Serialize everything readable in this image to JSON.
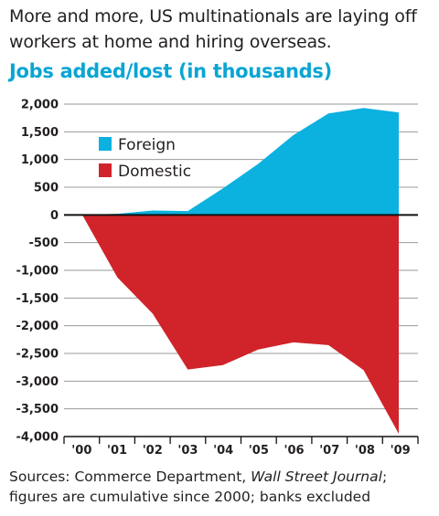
{
  "intro": "More and more, US multinationals are laying off workers at home and hiring overseas.",
  "source": {
    "prefix": "Sources: Commerce Department, ",
    "italic": "Wall Street Journal",
    "suffix": "; figures are cumulative since 2000; banks excluded"
  },
  "colors": {
    "foreign": "#0bb1df",
    "domestic": "#d1232a",
    "title": "#0aa5d3",
    "grid": "#9a9a9a",
    "axis": "#111111"
  },
  "chart_data": {
    "type": "area",
    "title": "Jobs added/lost (in thousands)",
    "x": [
      "'00",
      "'01",
      "'02",
      "'03",
      "'04",
      "'05",
      "'06",
      "'07",
      "'08",
      "'09"
    ],
    "ylim": [
      -4000,
      2000
    ],
    "yticks": [
      2000,
      1500,
      1000,
      500,
      0,
      -500,
      -1000,
      -1500,
      -2000,
      -2500,
      -3000,
      -3500,
      -4000
    ],
    "ytick_labels": [
      "2,000",
      "1,500",
      "1,000",
      "500",
      "0",
      "-500",
      "-1,000",
      "-1,500",
      "-2,000",
      "-2,500",
      "-3,000",
      "-3,500",
      "-4,000"
    ],
    "series": [
      {
        "name": "Foreign",
        "values": [
          0,
          20,
          80,
          70,
          480,
          920,
          1440,
          1830,
          1930,
          1850
        ]
      },
      {
        "name": "Domestic",
        "values": [
          0,
          -1130,
          -1780,
          -2790,
          -2710,
          -2430,
          -2300,
          -2350,
          -2800,
          -3950
        ]
      }
    ],
    "grid": true,
    "legend": "top-left"
  }
}
